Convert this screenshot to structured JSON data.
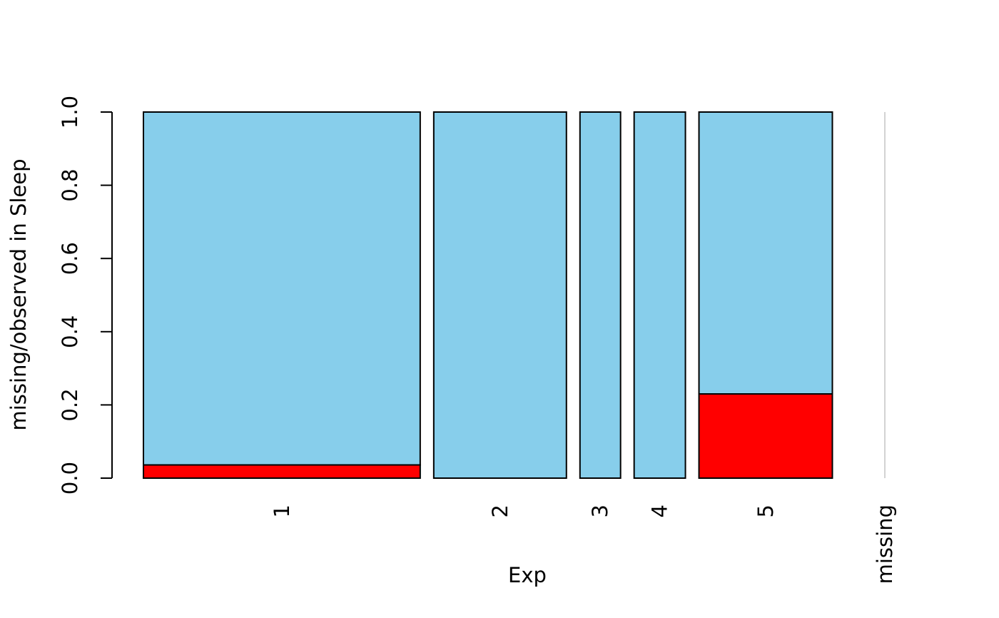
{
  "chart_data": {
    "type": "bar",
    "subtype": "spineplot",
    "title": "",
    "xlabel": "Exp",
    "ylabel": "missing/observed in Sleep",
    "ylim": [
      0,
      1
    ],
    "yticks": [
      "0.0",
      "0.2",
      "0.4",
      "0.6",
      "0.8",
      "1.0"
    ],
    "yticks_values": [
      0,
      0.2,
      0.4,
      0.6,
      0.8,
      1.0
    ],
    "grid": false,
    "legend": "none",
    "categories": [
      "1",
      "2",
      "3",
      "4",
      "5",
      "missing"
    ],
    "bar_width_share": [
      0.4193,
      0.201,
      0.0615,
      0.0777,
      0.2021,
      0
    ],
    "series": [
      {
        "values": [
          0.036,
          0,
          0,
          0,
          0.23,
          0
        ]
      },
      {
        "values": [
          0.964,
          1,
          1,
          1,
          0.77,
          0
        ]
      }
    ],
    "colors": {
      "missing": "#ff0000",
      "observed": "#87ceeb",
      "outline": "#000000",
      "empty_category": "#d3d3d3"
    }
  }
}
